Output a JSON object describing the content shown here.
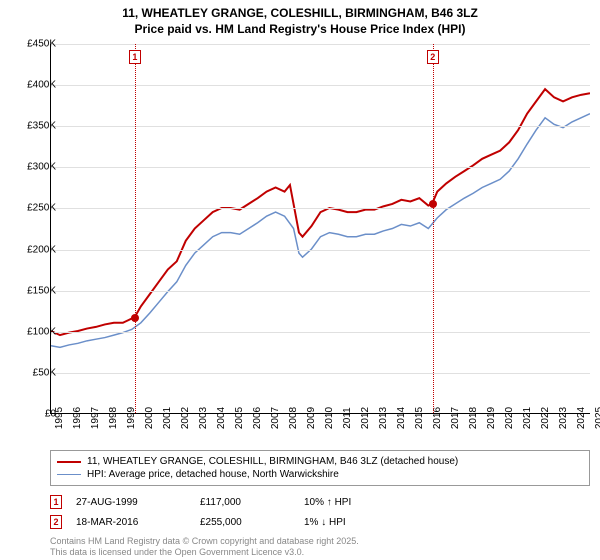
{
  "title_line1": "11, WHEATLEY GRANGE, COLESHILL, BIRMINGHAM, B46 3LZ",
  "title_line2": "Price paid vs. HM Land Registry's House Price Index (HPI)",
  "chart": {
    "type": "line",
    "background_color": "#ffffff",
    "grid_color": "#e0e0e0",
    "axis_color": "#000000",
    "ylim": [
      0,
      450000
    ],
    "ytick_step": 50000,
    "yticks": [
      "£0",
      "£50K",
      "£100K",
      "£150K",
      "£200K",
      "£250K",
      "£300K",
      "£350K",
      "£400K",
      "£450K"
    ],
    "xlim": [
      1995,
      2025
    ],
    "xticks": [
      "1995",
      "1996",
      "1997",
      "1998",
      "1999",
      "2000",
      "2001",
      "2002",
      "2003",
      "2004",
      "2005",
      "2006",
      "2007",
      "2008",
      "2009",
      "2010",
      "2011",
      "2012",
      "2013",
      "2014",
      "2015",
      "2016",
      "2017",
      "2018",
      "2019",
      "2020",
      "2021",
      "2022",
      "2023",
      "2024",
      "2025"
    ],
    "series": [
      {
        "name": "price_paid",
        "label": "11, WHEATLEY GRANGE, COLESHILL, BIRMINGHAM, B46 3LZ (detached house)",
        "color": "#c00000",
        "line_width": 2,
        "data": [
          [
            1995,
            100
          ],
          [
            1995.5,
            95
          ],
          [
            1996,
            98
          ],
          [
            1996.5,
            100
          ],
          [
            1997,
            103
          ],
          [
            1997.5,
            105
          ],
          [
            1998,
            108
          ],
          [
            1998.5,
            110
          ],
          [
            1999,
            110
          ],
          [
            1999.66,
            117
          ],
          [
            2000,
            130
          ],
          [
            2000.5,
            145
          ],
          [
            2001,
            160
          ],
          [
            2001.5,
            175
          ],
          [
            2002,
            185
          ],
          [
            2002.5,
            210
          ],
          [
            2003,
            225
          ],
          [
            2003.5,
            235
          ],
          [
            2004,
            245
          ],
          [
            2004.5,
            250
          ],
          [
            2005,
            250
          ],
          [
            2005.5,
            248
          ],
          [
            2006,
            255
          ],
          [
            2006.5,
            262
          ],
          [
            2007,
            270
          ],
          [
            2007.5,
            275
          ],
          [
            2008,
            270
          ],
          [
            2008.3,
            278
          ],
          [
            2008.5,
            255
          ],
          [
            2008.8,
            220
          ],
          [
            2009,
            215
          ],
          [
            2009.5,
            228
          ],
          [
            2010,
            245
          ],
          [
            2010.5,
            250
          ],
          [
            2011,
            248
          ],
          [
            2011.5,
            245
          ],
          [
            2012,
            245
          ],
          [
            2012.5,
            248
          ],
          [
            2013,
            248
          ],
          [
            2013.5,
            252
          ],
          [
            2014,
            255
          ],
          [
            2014.5,
            260
          ],
          [
            2015,
            258
          ],
          [
            2015.5,
            262
          ],
          [
            2016,
            253
          ],
          [
            2016.21,
            255
          ],
          [
            2016.5,
            270
          ],
          [
            2017,
            280
          ],
          [
            2017.5,
            288
          ],
          [
            2018,
            295
          ],
          [
            2018.5,
            302
          ],
          [
            2019,
            310
          ],
          [
            2019.5,
            315
          ],
          [
            2020,
            320
          ],
          [
            2020.5,
            330
          ],
          [
            2021,
            345
          ],
          [
            2021.5,
            365
          ],
          [
            2022,
            380
          ],
          [
            2022.5,
            395
          ],
          [
            2023,
            385
          ],
          [
            2023.5,
            380
          ],
          [
            2024,
            385
          ],
          [
            2024.5,
            388
          ],
          [
            2025,
            390
          ]
        ]
      },
      {
        "name": "hpi",
        "label": "HPI: Average price, detached house, North Warwickshire",
        "color": "#6b8fc9",
        "line_width": 1.5,
        "data": [
          [
            1995,
            82
          ],
          [
            1995.5,
            80
          ],
          [
            1996,
            83
          ],
          [
            1996.5,
            85
          ],
          [
            1997,
            88
          ],
          [
            1997.5,
            90
          ],
          [
            1998,
            92
          ],
          [
            1998.5,
            95
          ],
          [
            1999,
            98
          ],
          [
            1999.5,
            102
          ],
          [
            2000,
            110
          ],
          [
            2000.5,
            122
          ],
          [
            2001,
            135
          ],
          [
            2001.5,
            148
          ],
          [
            2002,
            160
          ],
          [
            2002.5,
            180
          ],
          [
            2003,
            195
          ],
          [
            2003.5,
            205
          ],
          [
            2004,
            215
          ],
          [
            2004.5,
            220
          ],
          [
            2005,
            220
          ],
          [
            2005.5,
            218
          ],
          [
            2006,
            225
          ],
          [
            2006.5,
            232
          ],
          [
            2007,
            240
          ],
          [
            2007.5,
            245
          ],
          [
            2008,
            240
          ],
          [
            2008.5,
            225
          ],
          [
            2008.8,
            195
          ],
          [
            2009,
            190
          ],
          [
            2009.5,
            200
          ],
          [
            2010,
            215
          ],
          [
            2010.5,
            220
          ],
          [
            2011,
            218
          ],
          [
            2011.5,
            215
          ],
          [
            2012,
            215
          ],
          [
            2012.5,
            218
          ],
          [
            2013,
            218
          ],
          [
            2013.5,
            222
          ],
          [
            2014,
            225
          ],
          [
            2014.5,
            230
          ],
          [
            2015,
            228
          ],
          [
            2015.5,
            232
          ],
          [
            2016,
            225
          ],
          [
            2016.5,
            238
          ],
          [
            2017,
            248
          ],
          [
            2017.5,
            255
          ],
          [
            2018,
            262
          ],
          [
            2018.5,
            268
          ],
          [
            2019,
            275
          ],
          [
            2019.5,
            280
          ],
          [
            2020,
            285
          ],
          [
            2020.5,
            295
          ],
          [
            2021,
            310
          ],
          [
            2021.5,
            328
          ],
          [
            2022,
            345
          ],
          [
            2022.5,
            360
          ],
          [
            2023,
            352
          ],
          [
            2023.5,
            348
          ],
          [
            2024,
            355
          ],
          [
            2024.5,
            360
          ],
          [
            2025,
            365
          ]
        ]
      }
    ],
    "markers": [
      {
        "id": "1",
        "x": 1999.66,
        "y": 117,
        "date": "27-AUG-1999",
        "price": "£117,000",
        "pct": "10% ↑ HPI"
      },
      {
        "id": "2",
        "x": 2016.21,
        "y": 255,
        "date": "18-MAR-2016",
        "price": "£255,000",
        "pct": "1% ↓ HPI"
      }
    ],
    "marker_color": "#c00000"
  },
  "legend": {
    "border_color": "#999999"
  },
  "attribution_line1": "Contains HM Land Registry data © Crown copyright and database right 2025.",
  "attribution_line2": "This data is licensed under the Open Government Licence v3.0."
}
